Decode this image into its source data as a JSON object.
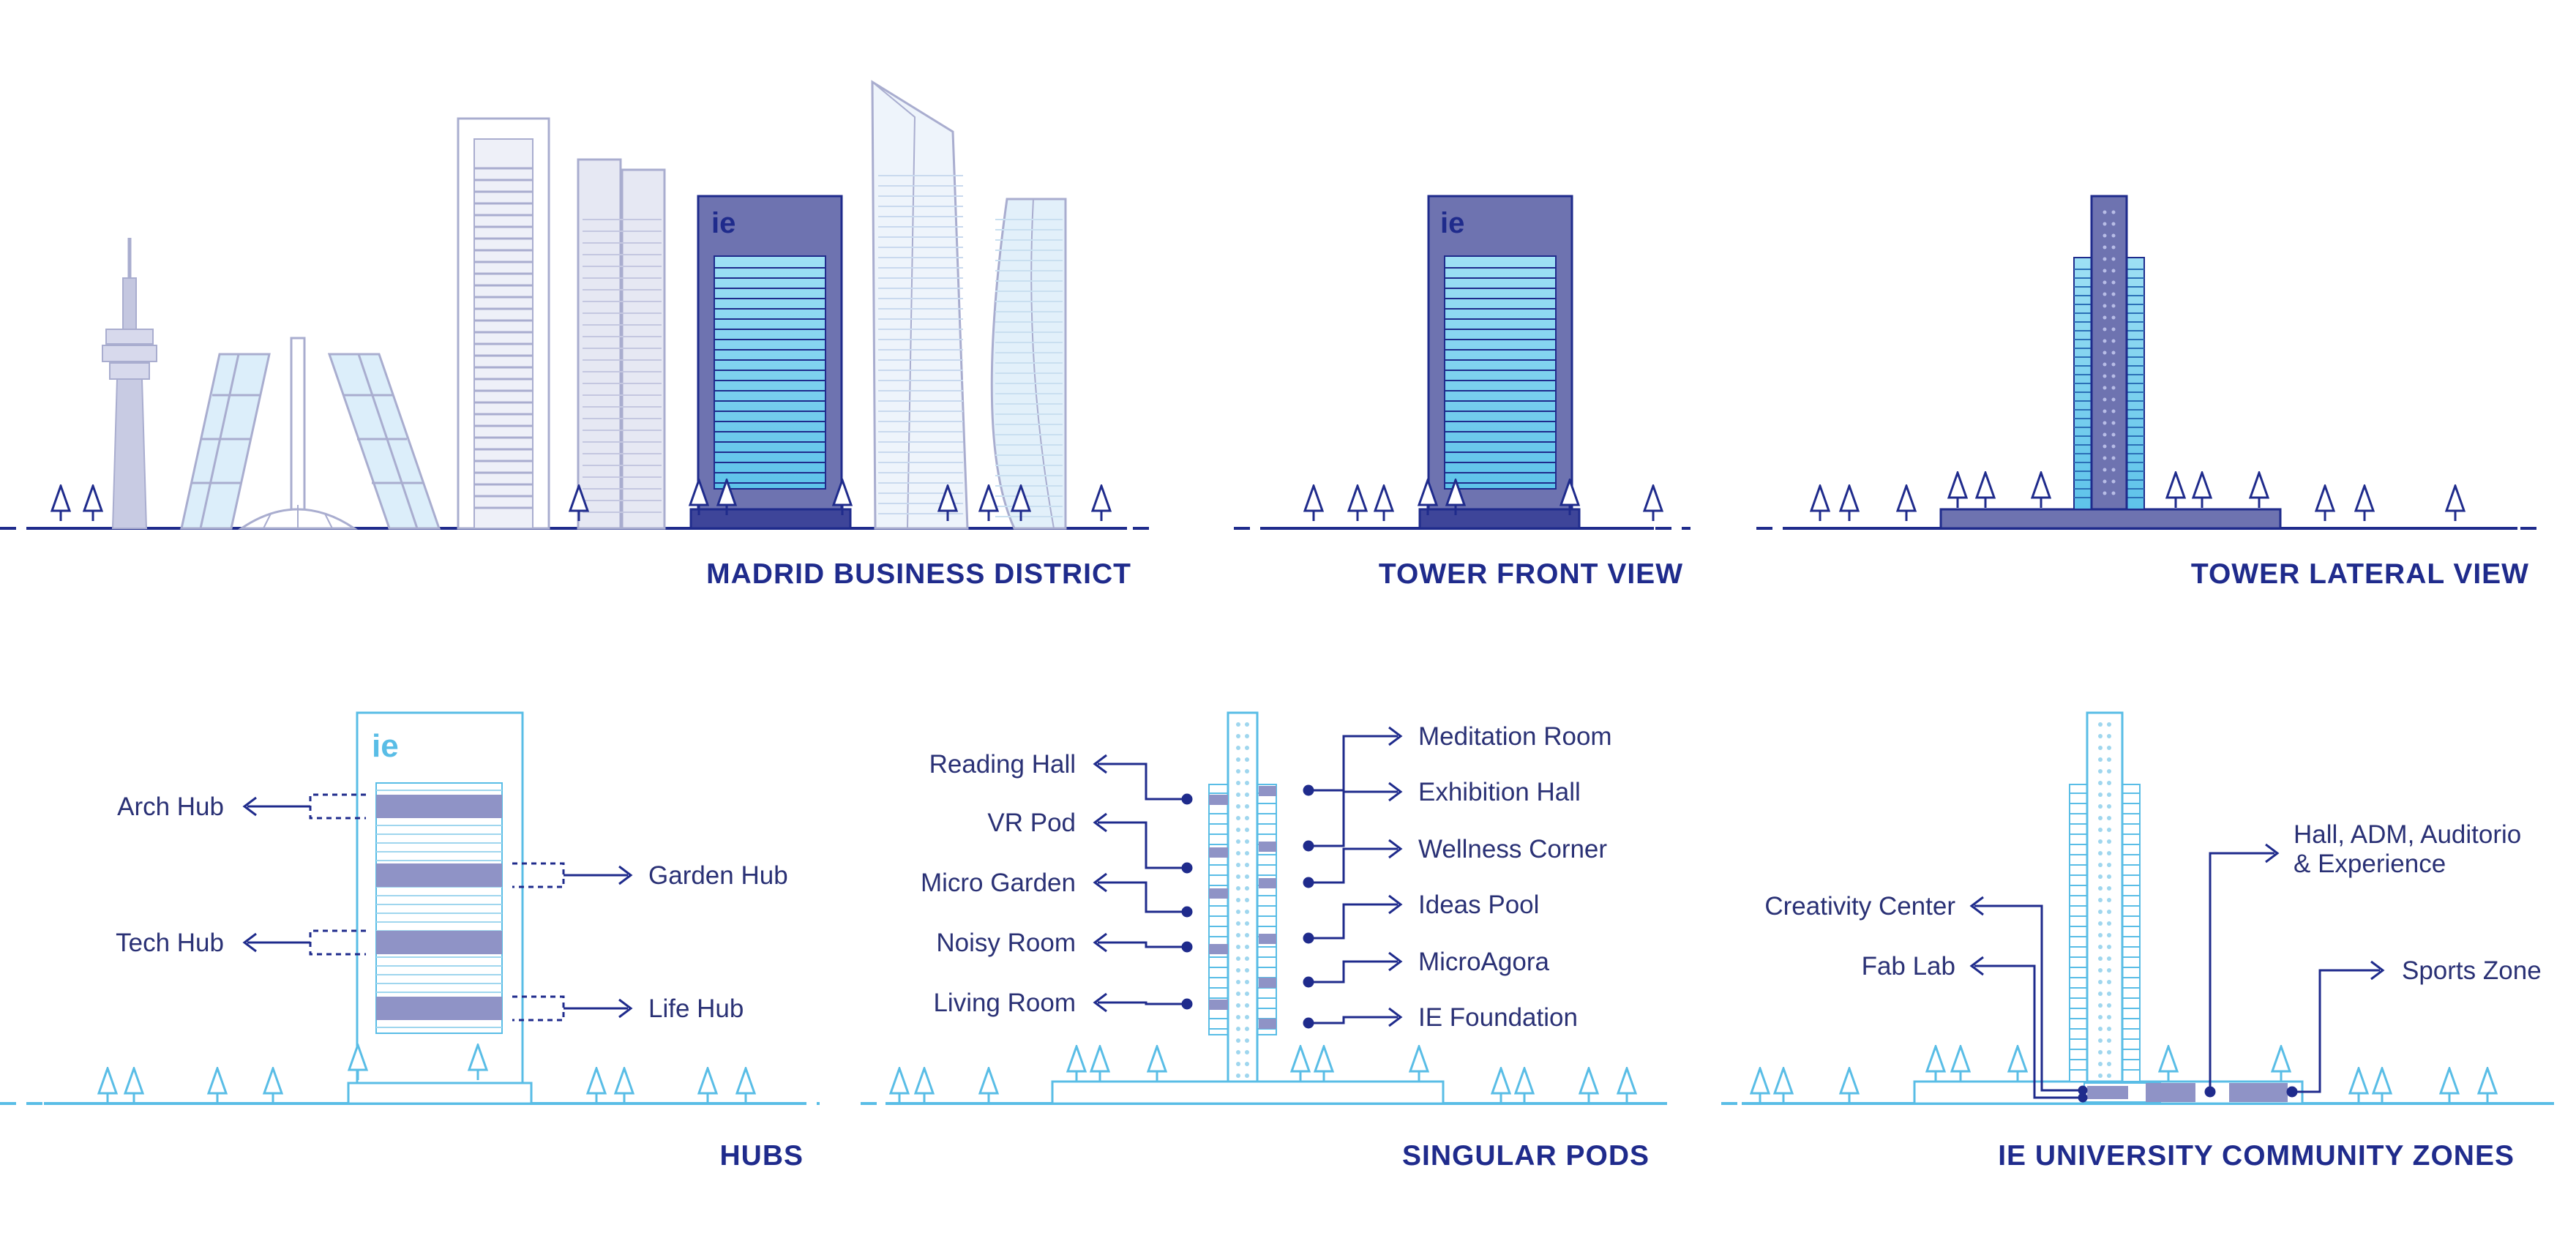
{
  "colors": {
    "navy": "#1f2b8c",
    "tower_purple": "#6e73b0",
    "glass_cyan": "#7fd3ee",
    "light_blue": "#59bde6",
    "pale_blue": "#d4e6f7",
    "grey_blue": "#a9adcf"
  },
  "logo_text": "ie",
  "panels": {
    "madrid": {
      "title": "MADRID BUSINESS DISTRICT"
    },
    "front": {
      "title": "TOWER FRONT VIEW"
    },
    "lateral": {
      "title": "TOWER LATERAL VIEW"
    },
    "hubs": {
      "title": "HUBS",
      "labels": [
        "Arch Hub",
        "Tech Hub",
        "Garden Hub",
        "Life Hub"
      ]
    },
    "pods": {
      "title": "SINGULAR PODS",
      "left_labels": [
        "Reading Hall",
        "VR Pod",
        "Micro Garden",
        "Noisy Room",
        "Living Room"
      ],
      "right_labels": [
        "Meditation Room",
        "Exhibition Hall",
        "Wellness Corner",
        "Ideas Pool",
        "MicroAgora",
        "IE Foundation"
      ]
    },
    "zones": {
      "title": "IE UNIVERSITY COMMUNITY ZONES",
      "labels": [
        "Creativity Center",
        "Fab Lab",
        "Hall, ADM, Auditorio",
        "& Experience",
        "Sports Zone"
      ]
    }
  }
}
